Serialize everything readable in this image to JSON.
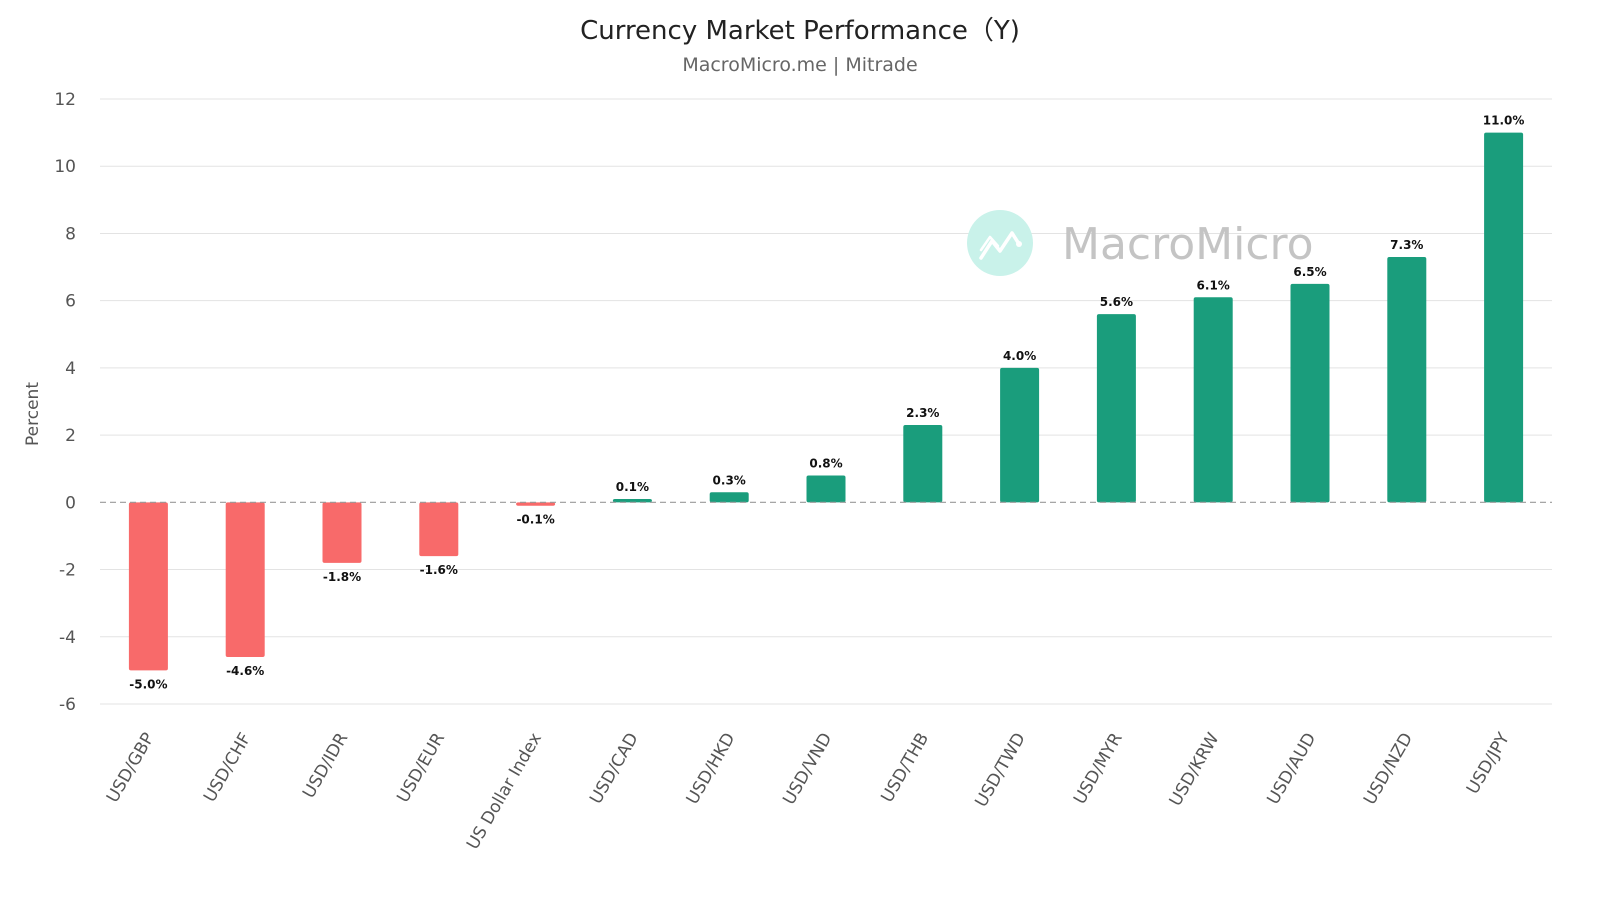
{
  "header": {
    "title": "Currency Market Performance（Y)",
    "subtitle": "MacroMicro.me | Mitrade"
  },
  "watermark": {
    "text": "MacroMicro",
    "icon": "macromicro-logo-icon",
    "icon_color": "#c9f2ea"
  },
  "colors": {
    "positive": "#1a9d7c",
    "negative": "#f86a6a",
    "grid": "#e3e3e3",
    "zero_line": "#999999"
  },
  "chart_data": {
    "type": "bar",
    "title": "Currency Market Performance（Y)",
    "subtitle": "MacroMicro.me | Mitrade",
    "ylabel": "Percent",
    "xlabel": "",
    "ylim": [
      -6,
      12
    ],
    "yticks": [
      12,
      10,
      8,
      6,
      4,
      2,
      0,
      -2,
      -4,
      -6
    ],
    "grid": true,
    "categories": [
      "USD/GBP",
      "USD/CHF",
      "USD/IDR",
      "USD/EUR",
      "US Dollar Index",
      "USD/CAD",
      "USD/HKD",
      "USD/VND",
      "USD/THB",
      "USD/TWD",
      "USD/MYR",
      "USD/KRW",
      "USD/AUD",
      "USD/NZD",
      "USD/JPY"
    ],
    "values": [
      -5.0,
      -4.6,
      -1.8,
      -1.6,
      -0.1,
      0.1,
      0.3,
      0.8,
      2.3,
      4.0,
      5.6,
      6.1,
      6.5,
      7.3,
      11.0
    ],
    "data_labels": [
      "-5.0%",
      "-4.6%",
      "-1.8%",
      "-1.6%",
      "-0.1%",
      "0.1%",
      "0.3%",
      "0.8%",
      "2.3%",
      "4.0%",
      "5.6%",
      "6.1%",
      "6.5%",
      "7.3%",
      "11.0%"
    ]
  }
}
